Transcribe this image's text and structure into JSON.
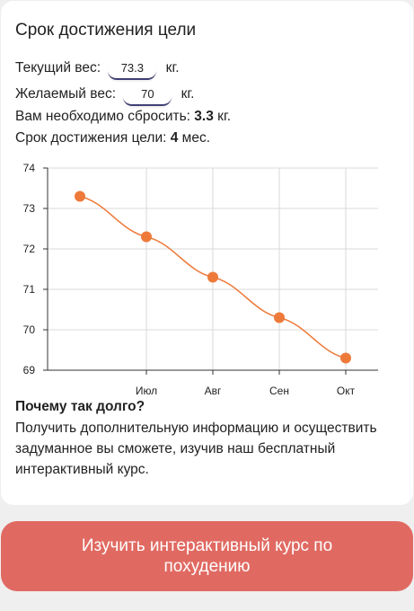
{
  "card": {
    "title": "Срок достижения цели",
    "current_weight_label": "Текущий вес:",
    "current_weight_value": "73.3",
    "target_weight_label": "Желаемый вес:",
    "target_weight_value": "70",
    "unit": "кг.",
    "lose_prefix": "Вам необходимо сбросить:",
    "lose_value": "3.3",
    "lose_unit": "кг.",
    "term_prefix": "Срок достижения цели:",
    "term_value": "4",
    "term_unit": "мес."
  },
  "chart_data": {
    "type": "line",
    "categories": [
      "",
      "Июл",
      "Авг",
      "Сен",
      "Окт"
    ],
    "values": [
      73.3,
      72.3,
      71.3,
      70.3,
      69.3
    ],
    "yticks": [
      69,
      70,
      71,
      72,
      73,
      74
    ],
    "ylim": [
      69,
      74
    ],
    "grid": true,
    "line_color": "#ee7a3a",
    "point_color": "#ee7a3a"
  },
  "why": {
    "title": "Почему так долго?",
    "text": "Получить дополнительную информацию и осуществить задуманное вы сможете, изучив наш бесплатный интерактивный курс."
  },
  "cta": {
    "label": "Изучить интерактивный курс по похудению",
    "color": "#e06a62"
  }
}
